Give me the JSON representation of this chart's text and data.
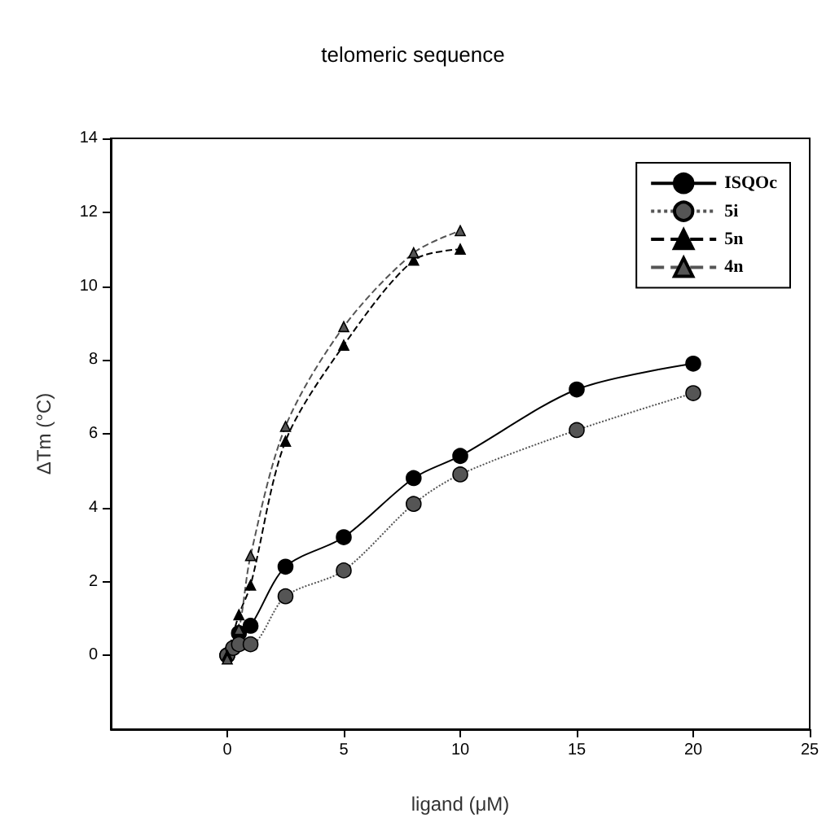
{
  "chart_data": {
    "type": "line",
    "title": "telomeric sequence",
    "xlabel": "ligand (μM)",
    "ylabel": "ΔTm (°C)",
    "xlim": [
      -5,
      25
    ],
    "xticks": [
      0,
      5,
      10,
      15,
      20,
      25
    ],
    "ylim": [
      -2,
      14
    ],
    "yticks": [
      0,
      2,
      4,
      6,
      8,
      10,
      12,
      14
    ],
    "grid": false,
    "legend": "top right",
    "series": [
      {
        "name": "ISQOc",
        "color": "#000000",
        "marker": "circle",
        "line_style": "solid",
        "x": [
          0,
          0.5,
          1,
          2.5,
          5,
          8,
          10,
          15,
          20
        ],
        "values": [
          0,
          0.6,
          0.8,
          2.4,
          3.2,
          4.8,
          5.4,
          7.2,
          7.9
        ]
      },
      {
        "name": "5i",
        "color": "#555555",
        "marker": "circle",
        "line_style": "dotted",
        "x": [
          0,
          0.25,
          0.5,
          1,
          2.5,
          5,
          8,
          10,
          15,
          20
        ],
        "values": [
          0,
          0.2,
          0.3,
          0.3,
          1.6,
          2.3,
          4.1,
          4.9,
          6.1,
          7.1
        ]
      },
      {
        "name": "5n",
        "color": "#000000",
        "marker": "triangle",
        "line_style": "dashed",
        "x": [
          0,
          0.5,
          1,
          2.5,
          5,
          8,
          10
        ],
        "values": [
          0,
          1.1,
          1.9,
          5.8,
          8.4,
          10.7,
          11.0
        ]
      },
      {
        "name": "4n",
        "color": "#555555",
        "marker": "triangle",
        "line_style": "dashed",
        "x": [
          0,
          0.5,
          1,
          2.5,
          5,
          8,
          10
        ],
        "values": [
          -0.1,
          0.7,
          2.7,
          6.2,
          8.9,
          10.9,
          11.5
        ]
      }
    ]
  }
}
